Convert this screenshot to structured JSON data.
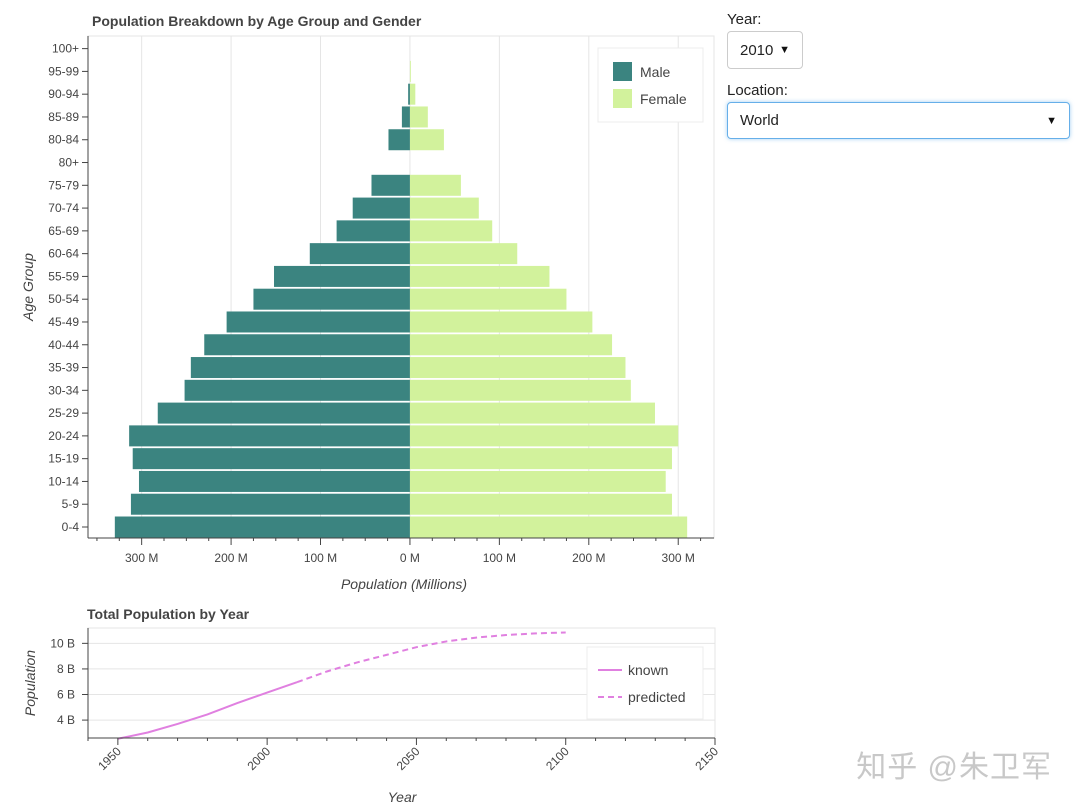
{
  "pyramid": {
    "title": "Population Breakdown by Age Group and Gender",
    "xlabel": "Population (Millions)",
    "ylabel": "Age Group",
    "legend": [
      {
        "key": "male",
        "label": "Male"
      },
      {
        "key": "female",
        "label": "Female"
      }
    ]
  },
  "total": {
    "title": "Total Population by Year",
    "xlabel": "Year",
    "ylabel": "Population",
    "legend": [
      {
        "key": "known",
        "label": "known"
      },
      {
        "key": "predicted",
        "label": "predicted"
      }
    ]
  },
  "controls": {
    "year_label": "Year:",
    "year_value": "2010",
    "location_label": "Location:",
    "location_value": "World"
  },
  "watermark": "知乎 @朱卫军",
  "colors": {
    "male": "#3b8480",
    "female": "#d2f29c",
    "line": "#e080e0",
    "grid": "#e5e5e5",
    "axis": "#444444",
    "focus": "#66afe9"
  },
  "chart_data": [
    {
      "type": "bar",
      "orientation": "horizontal",
      "categories": [
        "0-4",
        "5-9",
        "10-14",
        "15-19",
        "20-24",
        "25-29",
        "30-34",
        "35-39",
        "40-44",
        "45-49",
        "50-54",
        "55-59",
        "60-64",
        "65-69",
        "70-74",
        "75-79",
        "80+",
        "80-84",
        "85-89",
        "90-94",
        "95-99",
        "100+"
      ],
      "series": [
        {
          "name": "Male",
          "values": [
            -330,
            -312,
            -303,
            -310,
            -314,
            -282,
            -252,
            -245,
            -230,
            -205,
            -175,
            -152,
            -112,
            -82,
            -64,
            -43,
            0,
            -24,
            -9,
            -2,
            0,
            0
          ]
        },
        {
          "name": "Female",
          "values": [
            310,
            293,
            286,
            293,
            300,
            274,
            247,
            241,
            226,
            204,
            175,
            156,
            120,
            92,
            77,
            57,
            0,
            38,
            20,
            6,
            1,
            0
          ]
        }
      ],
      "xlim": [
        -360,
        340
      ],
      "x_ticks": [
        -300,
        -200,
        -100,
        0,
        100,
        200,
        300
      ],
      "x_tick_labels": [
        "300 M",
        "200 M",
        "100 M",
        "0 M",
        "100 M",
        "200 M",
        "300 M"
      ],
      "title": "Population Breakdown by Age Group and Gender",
      "xlabel": "Population (Millions)",
      "ylabel": "Age Group",
      "legend_position": "top-right",
      "grid": "vertical"
    },
    {
      "type": "line",
      "x_known": [
        1950,
        1960,
        1970,
        1980,
        1990,
        2000,
        2010
      ],
      "y_known": [
        2.54,
        3.03,
        3.7,
        4.44,
        5.33,
        6.15,
        6.96
      ],
      "x_predicted": [
        2010,
        2020,
        2030,
        2040,
        2050,
        2060,
        2070,
        2080,
        2090,
        2100
      ],
      "y_predicted": [
        6.96,
        7.8,
        8.5,
        9.1,
        9.7,
        10.15,
        10.45,
        10.65,
        10.78,
        10.85
      ],
      "series": [
        {
          "name": "known",
          "style": "solid"
        },
        {
          "name": "predicted",
          "style": "dashed"
        }
      ],
      "xlim": [
        1940,
        2150
      ],
      "ylim": [
        2.6,
        11.2
      ],
      "x_ticks": [
        1950,
        2000,
        2050,
        2100,
        2150
      ],
      "y_ticks": [
        4,
        6,
        8,
        10
      ],
      "y_tick_labels": [
        "4 B",
        "6 B",
        "8 B",
        "10 B"
      ],
      "title": "Total Population by Year",
      "xlabel": "Year",
      "ylabel": "Population",
      "legend_position": "bottom-right",
      "grid": "horizontal"
    }
  ]
}
